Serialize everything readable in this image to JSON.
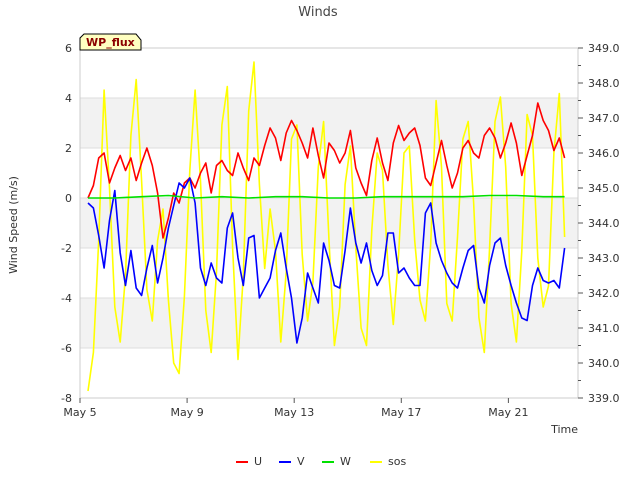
{
  "chart_data": {
    "type": "line",
    "title": "Winds",
    "badge": "WP_flux",
    "xlabel": "Time",
    "ylabel": "Wind Speed (m/s)",
    "ylim": [
      -8,
      6
    ],
    "y2lim": [
      339.0,
      349.0
    ],
    "xlim": [
      5,
      23.6
    ],
    "x_ticks": [
      {
        "value": 5,
        "label": "May 5"
      },
      {
        "value": 9,
        "label": "May 9"
      },
      {
        "value": 13,
        "label": "May 13"
      },
      {
        "value": 17,
        "label": "May 17"
      },
      {
        "value": 21,
        "label": "May 21"
      }
    ],
    "y_ticks": [
      "-8",
      "-6",
      "-4",
      "-2",
      "0",
      "2",
      "4",
      "6"
    ],
    "y2_ticks": [
      "339.0",
      "340.0",
      "341.0",
      "342.0",
      "343.0",
      "344.0",
      "345.0",
      "346.0",
      "347.0",
      "348.0",
      "349.0"
    ],
    "series": [
      {
        "name": "U",
        "color": "#ff0000",
        "axis": "left",
        "x": [
          5.3,
          5.5,
          5.7,
          5.9,
          6.1,
          6.3,
          6.5,
          6.7,
          6.9,
          7.1,
          7.3,
          7.5,
          7.7,
          7.9,
          8.1,
          8.3,
          8.5,
          8.7,
          8.9,
          9.1,
          9.3,
          9.5,
          9.7,
          9.9,
          10.1,
          10.3,
          10.5,
          10.7,
          10.9,
          11.1,
          11.3,
          11.5,
          11.7,
          11.9,
          12.1,
          12.3,
          12.5,
          12.7,
          12.9,
          13.1,
          13.3,
          13.5,
          13.7,
          13.9,
          14.1,
          14.3,
          14.5,
          14.7,
          14.9,
          15.1,
          15.3,
          15.5,
          15.7,
          15.9,
          16.1,
          16.3,
          16.5,
          16.7,
          16.9,
          17.1,
          17.3,
          17.5,
          17.7,
          17.9,
          18.1,
          18.3,
          18.5,
          18.7,
          18.9,
          19.1,
          19.3,
          19.5,
          19.7,
          19.9,
          20.1,
          20.3,
          20.5,
          20.7,
          20.9,
          21.1,
          21.3,
          21.5,
          21.7,
          21.9,
          22.1,
          22.3,
          22.5,
          22.7,
          22.9,
          23.1
        ],
        "y": [
          0.0,
          0.5,
          1.6,
          1.8,
          0.6,
          1.2,
          1.7,
          1.1,
          1.6,
          0.7,
          1.4,
          2.0,
          1.3,
          0.2,
          -1.6,
          -0.8,
          0.2,
          -0.2,
          0.6,
          0.8,
          0.4,
          1.0,
          1.4,
          0.2,
          1.3,
          1.5,
          1.1,
          0.9,
          1.8,
          1.2,
          0.7,
          1.6,
          1.3,
          2.1,
          2.8,
          2.4,
          1.5,
          2.6,
          3.1,
          2.7,
          2.2,
          1.6,
          2.8,
          1.7,
          0.8,
          2.2,
          1.9,
          1.4,
          1.8,
          2.7,
          1.2,
          0.6,
          0.1,
          1.5,
          2.4,
          1.4,
          0.7,
          2.2,
          2.9,
          2.3,
          2.6,
          2.8,
          2.1,
          0.8,
          0.5,
          1.4,
          2.3,
          1.3,
          0.4,
          1.0,
          2.0,
          2.3,
          1.8,
          1.6,
          2.5,
          2.8,
          2.4,
          1.6,
          2.2,
          3.0,
          2.2,
          0.9,
          1.7,
          2.5,
          3.8,
          3.1,
          2.7,
          1.9,
          2.4,
          1.6
        ]
      },
      {
        "name": "V",
        "color": "#0000ff",
        "axis": "left",
        "x": [
          5.3,
          5.5,
          5.7,
          5.9,
          6.1,
          6.3,
          6.5,
          6.7,
          6.9,
          7.1,
          7.3,
          7.5,
          7.7,
          7.9,
          8.1,
          8.3,
          8.5,
          8.7,
          8.9,
          9.1,
          9.3,
          9.5,
          9.7,
          9.9,
          10.1,
          10.3,
          10.5,
          10.7,
          10.9,
          11.1,
          11.3,
          11.5,
          11.7,
          11.9,
          12.1,
          12.3,
          12.5,
          12.7,
          12.9,
          13.1,
          13.3,
          13.5,
          13.7,
          13.9,
          14.1,
          14.3,
          14.5,
          14.7,
          14.9,
          15.1,
          15.3,
          15.5,
          15.7,
          15.9,
          16.1,
          16.3,
          16.5,
          16.7,
          16.9,
          17.1,
          17.3,
          17.5,
          17.7,
          17.9,
          18.1,
          18.3,
          18.5,
          18.7,
          18.9,
          19.1,
          19.3,
          19.5,
          19.7,
          19.9,
          20.1,
          20.3,
          20.5,
          20.7,
          20.9,
          21.1,
          21.3,
          21.5,
          21.7,
          21.9,
          22.1,
          22.3,
          22.5,
          22.7,
          22.9,
          23.1
        ],
        "y": [
          -0.2,
          -0.4,
          -1.5,
          -2.8,
          -0.9,
          0.3,
          -2.2,
          -3.5,
          -2.1,
          -3.6,
          -3.9,
          -2.8,
          -1.9,
          -3.4,
          -2.4,
          -1.2,
          -0.3,
          0.6,
          0.4,
          0.8,
          -0.2,
          -2.8,
          -3.5,
          -2.6,
          -3.2,
          -3.4,
          -1.2,
          -0.6,
          -2.4,
          -3.5,
          -1.6,
          -1.5,
          -4.0,
          -3.6,
          -3.2,
          -2.1,
          -1.4,
          -2.8,
          -4.0,
          -5.8,
          -4.8,
          -3.0,
          -3.6,
          -4.2,
          -1.8,
          -2.5,
          -3.5,
          -3.6,
          -2.1,
          -0.4,
          -1.8,
          -2.6,
          -1.8,
          -2.9,
          -3.5,
          -3.1,
          -1.4,
          -1.4,
          -3.0,
          -2.8,
          -3.2,
          -3.5,
          -3.5,
          -0.6,
          -0.2,
          -1.8,
          -2.5,
          -3.0,
          -3.4,
          -3.6,
          -2.8,
          -2.1,
          -1.9,
          -3.6,
          -4.2,
          -2.7,
          -1.8,
          -1.6,
          -2.7,
          -3.5,
          -4.2,
          -4.8,
          -4.9,
          -3.5,
          -2.8,
          -3.3,
          -3.4,
          -3.3,
          -3.6,
          -2.0
        ]
      },
      {
        "name": "W",
        "color": "#00e000",
        "axis": "left",
        "x": [
          5.3,
          6.3,
          7.3,
          8.3,
          9.3,
          10.3,
          11.3,
          12.3,
          13.3,
          14.3,
          15.3,
          16.3,
          17.3,
          18.3,
          19.3,
          20.3,
          21.3,
          22.3,
          23.1
        ],
        "y": [
          0.0,
          0.0,
          0.05,
          0.1,
          0.0,
          0.05,
          0.0,
          0.05,
          0.05,
          0.0,
          0.0,
          0.05,
          0.05,
          0.05,
          0.05,
          0.1,
          0.1,
          0.05,
          0.05
        ]
      },
      {
        "name": "sos",
        "color": "#ffff00",
        "axis": "right",
        "x": [
          5.3,
          5.5,
          5.7,
          5.9,
          6.1,
          6.3,
          6.5,
          6.7,
          6.9,
          7.1,
          7.3,
          7.5,
          7.7,
          7.9,
          8.1,
          8.3,
          8.5,
          8.7,
          8.9,
          9.1,
          9.3,
          9.5,
          9.7,
          9.9,
          10.1,
          10.3,
          10.5,
          10.7,
          10.9,
          11.1,
          11.3,
          11.5,
          11.7,
          11.9,
          12.1,
          12.3,
          12.5,
          12.7,
          12.9,
          13.1,
          13.3,
          13.5,
          13.7,
          13.9,
          14.1,
          14.3,
          14.5,
          14.7,
          14.9,
          15.1,
          15.3,
          15.5,
          15.7,
          15.9,
          16.1,
          16.3,
          16.5,
          16.7,
          16.9,
          17.1,
          17.3,
          17.5,
          17.7,
          17.9,
          18.1,
          18.3,
          18.5,
          18.7,
          18.9,
          19.1,
          19.3,
          19.5,
          19.7,
          19.9,
          20.1,
          20.3,
          20.5,
          20.7,
          20.9,
          21.1,
          21.3,
          21.5,
          21.7,
          21.9,
          22.1,
          22.3,
          22.5,
          22.7,
          22.9,
          23.1
        ],
        "y": [
          339.2,
          340.3,
          343.5,
          347.8,
          345.0,
          341.6,
          340.6,
          342.5,
          346.5,
          348.1,
          345.2,
          342.1,
          341.2,
          343.5,
          344.4,
          341.8,
          340.0,
          339.7,
          341.9,
          345.5,
          347.8,
          345.2,
          341.5,
          340.3,
          342.6,
          346.8,
          347.9,
          343.3,
          340.1,
          342.5,
          347.2,
          348.6,
          345.1,
          342.7,
          344.4,
          343.2,
          340.6,
          342.6,
          346.4,
          346.8,
          343.1,
          341.2,
          342.3,
          345.6,
          346.9,
          343.5,
          340.5,
          341.6,
          345.1,
          346.2,
          343.3,
          341.0,
          340.5,
          343.8,
          346.0,
          345.5,
          342.8,
          341.1,
          343.1,
          346.0,
          346.2,
          343.5,
          341.8,
          341.2,
          343.4,
          347.5,
          345.6,
          341.7,
          341.2,
          343.6,
          346.4,
          346.9,
          344.6,
          341.3,
          340.3,
          343.3,
          346.9,
          347.6,
          345.6,
          341.7,
          340.6,
          343.2,
          347.1,
          346.5,
          343.0,
          341.6,
          342.2,
          346.0,
          347.7,
          343.6
        ]
      }
    ]
  }
}
